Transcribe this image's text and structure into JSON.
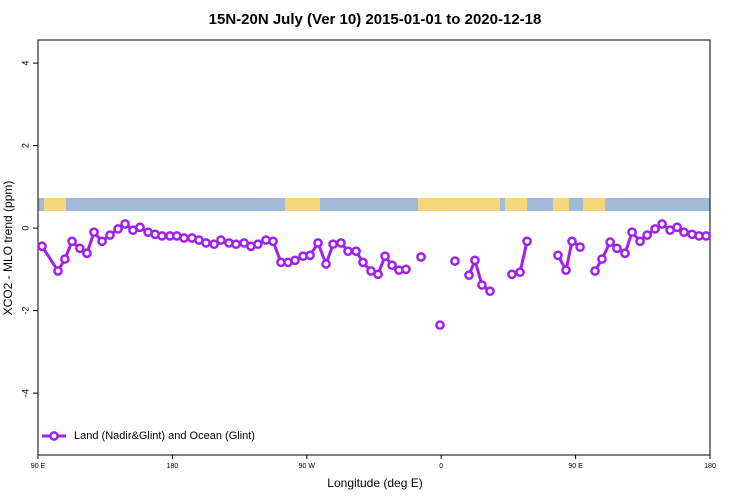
{
  "chart_data": {
    "type": "line",
    "title": "15N-20N July (Ver 10)   2015-01-01 to 2020-12-18",
    "xlabel": "Longitude (deg E)",
    "ylabel": "XCO2 - MLO trend (ppm)",
    "x": [
      92.7,
      103.4,
      108,
      112.8,
      118,
      122.8,
      127.5,
      132.9,
      138.2,
      143.6,
      148.3,
      153.6,
      158.3,
      163.7,
      168.4,
      173,
      178.4,
      183,
      187.8,
      193.1,
      197.8,
      202.5,
      207.9,
      212.5,
      217.9,
      222.6,
      228,
      232.6,
      237.3,
      242.7,
      247.4,
      252.7,
      257.4,
      262.1,
      267.5,
      272.2,
      277.5,
      282.9,
      287.6,
      292.9,
      297.6,
      303,
      307.6,
      313,
      317.7,
      322.4,
      327.1,
      331.7,
      336.4,
      341,
      346.5,
      353,
      359.2,
      364,
      369.2,
      374,
      378.6,
      382.6,
      387.3,
      392.7,
      400,
      407.4,
      412.8,
      417.5,
      428,
      438.2,
      443.6,
      447.6,
      453,
      458,
      463,
      467.7,
      473.1,
      477.7,
      483.1,
      487.8,
      493.2,
      497.9,
      503.2,
      507.9,
      513.3,
      518,
      522.6,
      528,
      532.7,
      537.4
    ],
    "series": [
      {
        "name": "Land (Nadir&Glint) and Ocean (Glint)",
        "color": "#a020f0",
        "values": [
          -0.44,
          -1.04,
          -0.75,
          -0.32,
          -0.49,
          -0.61,
          -0.1,
          -0.32,
          -0.17,
          -0.02,
          0.1,
          -0.05,
          0.02,
          -0.1,
          -0.15,
          -0.19,
          -0.19,
          -0.19,
          -0.24,
          -0.24,
          -0.29,
          -0.36,
          -0.39,
          -0.29,
          -0.36,
          -0.39,
          -0.36,
          -0.44,
          -0.39,
          -0.29,
          -0.32,
          -0.83,
          -0.83,
          -0.78,
          -0.68,
          -0.66,
          -0.36,
          -0.87,
          -0.39,
          -0.36,
          -0.56,
          -0.56,
          -0.83,
          -1.04,
          -1.12,
          -0.68,
          -0.9,
          -1.02,
          -1.0,
          null,
          -0.7,
          null,
          -2.35,
          null,
          -0.8,
          null,
          -1.14,
          -0.78,
          -1.38,
          -1.53,
          null,
          -1.12,
          -1.07,
          -0.32,
          null,
          -0.66,
          -1.02,
          -0.32,
          -0.46,
          null,
          -1.04,
          -0.75,
          -0.34,
          -0.49,
          -0.61,
          -0.1,
          -0.32,
          -0.17,
          -0.02,
          0.1,
          -0.05,
          0.02,
          -0.1,
          -0.15,
          -0.19,
          -0.19
        ]
      }
    ],
    "xlim": [
      90,
      540
    ],
    "xticks": [
      {
        "value": 90,
        "label": "90 E"
      },
      {
        "value": 180,
        "label": "180"
      },
      {
        "value": 270,
        "label": "90 W"
      },
      {
        "value": 360,
        "label": "0"
      },
      {
        "value": 450,
        "label": "90 E"
      },
      {
        "value": 540,
        "label": "180"
      }
    ],
    "ylim": [
      -5.5,
      4.56
    ],
    "yticks": [
      -4,
      -2,
      0,
      2,
      4
    ],
    "legend": "bottom-left"
  }
}
